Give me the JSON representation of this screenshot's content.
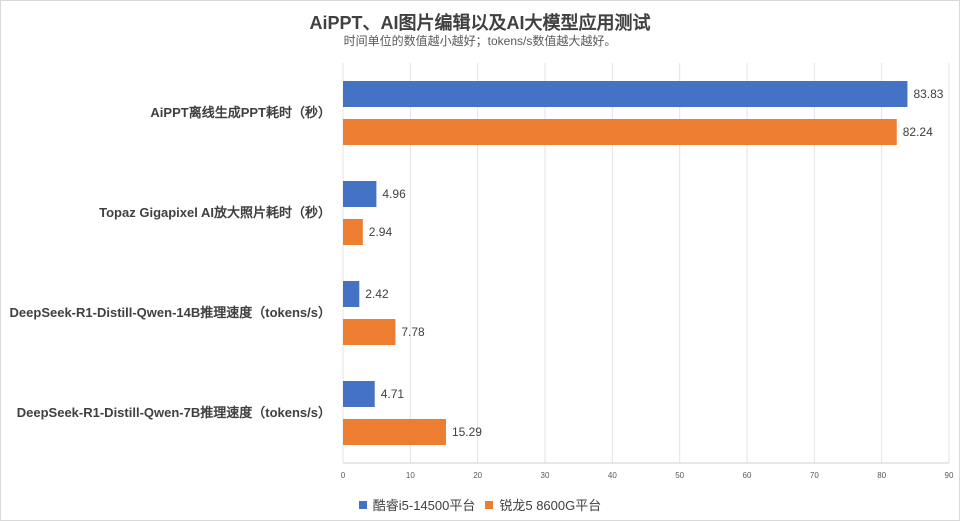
{
  "chart_data": {
    "type": "bar",
    "orientation": "horizontal",
    "title": "AiPPT、AI图片编辑以及AI大模型应用测试",
    "subtitle": "时间单位的数值越小越好；tokens/s数值越大越好。",
    "categories": [
      "AiPPT离线生成PPT耗时（秒）",
      "Topaz Gigapixel AI放大照片耗时（秒）",
      "DeepSeek-R1-Distill-Qwen-14B推理速度（tokens/s）",
      "DeepSeek-R1-Distill-Qwen-7B推理速度（tokens/s）"
    ],
    "series": [
      {
        "name": "酷睿i5-14500平台",
        "color": "#4472c4",
        "values": [
          83.83,
          4.96,
          2.42,
          4.71
        ]
      },
      {
        "name": "锐龙5 8600G平台",
        "color": "#ed7d31",
        "values": [
          82.24,
          2.94,
          7.78,
          15.29
        ]
      }
    ],
    "xlim": [
      0,
      90
    ],
    "xticks": [
      0,
      10,
      20,
      30,
      40,
      50,
      60,
      70,
      80,
      90
    ],
    "xlabel": "",
    "ylabel": "",
    "grid": true,
    "legend_position": "bottom"
  }
}
